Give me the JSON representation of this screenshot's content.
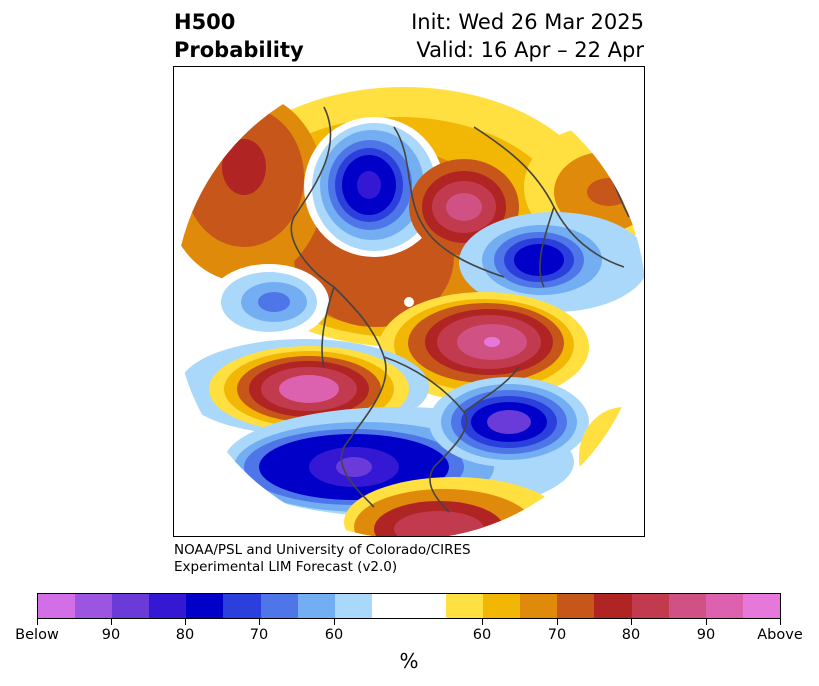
{
  "title": {
    "left_line1": "H500",
    "left_line2": "Probability",
    "right_line1": "Init: Wed 26 Mar 2025",
    "right_line2": "Valid: 16 Apr – 22 Apr"
  },
  "credit": {
    "line1": "NOAA/PSL and University of Colorado/CIRES",
    "line2": "Experimental LIM Forecast (v2.0)"
  },
  "colorbar": {
    "unit": "%",
    "colors": [
      "#d36fe6",
      "#9b55e0",
      "#6a3bd9",
      "#3418d4",
      "#0000c8",
      "#2b3fdc",
      "#4f76e8",
      "#73aef2",
      "#aad8fa",
      "#ffffff",
      "#ffffff",
      "#ffe040",
      "#f2b705",
      "#e08a0c",
      "#c6561a",
      "#b02424",
      "#c23a4e",
      "#d05285",
      "#dc62b0",
      "#e678dc"
    ],
    "ticks": [
      {
        "label": "Below"
      },
      {
        "label": "90"
      },
      {
        "label": "80"
      },
      {
        "label": "70"
      },
      {
        "label": "60"
      },
      {
        "label": "60"
      },
      {
        "label": "70"
      },
      {
        "label": "80"
      },
      {
        "label": "90"
      },
      {
        "label": "Above"
      }
    ]
  },
  "map_legend": {
    "palette": {
      "lavender": "#d36fe6",
      "purple": "#6a3bd9",
      "navy": "#0000c8",
      "blue": "#2b3fdc",
      "mid_blue": "#4f76e8",
      "light_blue": "#73aef2",
      "pale_blue": "#aad8fa",
      "yellow": "#ffe040",
      "gold": "#f2b705",
      "orange": "#e08a0c",
      "rust": "#c6561a",
      "red": "#b02424",
      "crimson": "#c23a4e",
      "rose": "#d05285",
      "pink": "#dc62b0"
    }
  }
}
